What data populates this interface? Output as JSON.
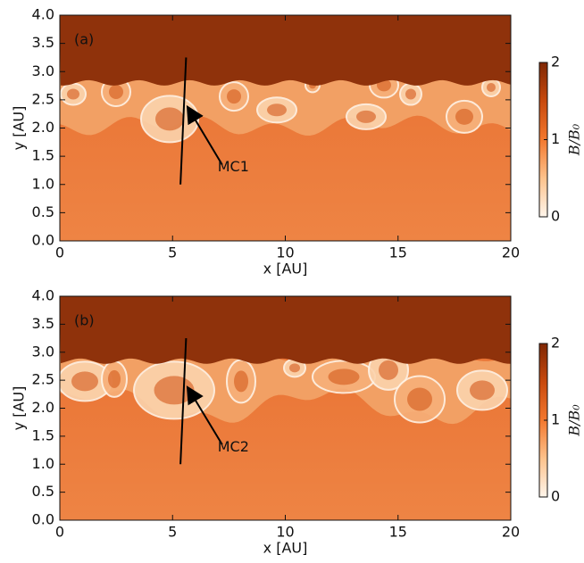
{
  "chart_data": [
    {
      "type": "image",
      "label": "(a)",
      "annotation": "MC1",
      "xlabel": "x [AU]",
      "ylabel": "y [AU]",
      "xlim": [
        0,
        20
      ],
      "xticks": [
        0,
        5,
        10,
        15,
        20
      ],
      "ylim": [
        0,
        4
      ],
      "yticks": [
        {
          "value": 0,
          "label": "0.0"
        },
        {
          "value": 0.5,
          "label": "0.5"
        },
        {
          "value": 1,
          "label": "1.0"
        },
        {
          "value": 1.5,
          "label": "1.5"
        },
        {
          "value": 2,
          "label": "2.0"
        },
        {
          "value": 2.5,
          "label": "2.5"
        },
        {
          "value": 3,
          "label": "3.0"
        },
        {
          "value": 3.5,
          "label": "3.5"
        },
        {
          "value": 4,
          "label": "4.0"
        }
      ],
      "colorbar": {
        "label": "B/B₀",
        "lim": [
          0,
          2
        ],
        "ticks": [
          0,
          1,
          2
        ]
      }
    },
    {
      "type": "image",
      "label": "(b)",
      "annotation": "MC2",
      "xlabel": "x [AU]",
      "ylabel": "y [AU]",
      "xlim": [
        0,
        20
      ],
      "xticks": [
        0,
        5,
        10,
        15,
        20
      ],
      "ylim": [
        0,
        4
      ],
      "yticks": [
        {
          "value": 0,
          "label": "0.0"
        },
        {
          "value": 0.5,
          "label": "0.5"
        },
        {
          "value": 1,
          "label": "1.0"
        },
        {
          "value": 1.5,
          "label": "1.5"
        },
        {
          "value": 2,
          "label": "2.0"
        },
        {
          "value": 2.5,
          "label": "2.5"
        },
        {
          "value": 3,
          "label": "3.0"
        },
        {
          "value": 3.5,
          "label": "3.5"
        },
        {
          "value": 4,
          "label": "4.0"
        }
      ],
      "colorbar": {
        "label": "B/B₀",
        "lim": [
          0,
          2
        ],
        "ticks": [
          0,
          1,
          2
        ]
      }
    }
  ]
}
